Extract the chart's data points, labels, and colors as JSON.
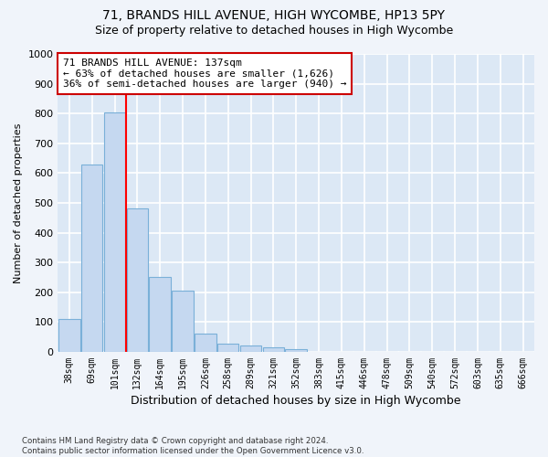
{
  "title1": "71, BRANDS HILL AVENUE, HIGH WYCOMBE, HP13 5PY",
  "title2": "Size of property relative to detached houses in High Wycombe",
  "xlabel": "Distribution of detached houses by size in High Wycombe",
  "ylabel": "Number of detached properties",
  "footnote": "Contains HM Land Registry data © Crown copyright and database right 2024.\nContains public sector information licensed under the Open Government Licence v3.0.",
  "bin_labels": [
    "38sqm",
    "69sqm",
    "101sqm",
    "132sqm",
    "164sqm",
    "195sqm",
    "226sqm",
    "258sqm",
    "289sqm",
    "321sqm",
    "352sqm",
    "383sqm",
    "415sqm",
    "446sqm",
    "478sqm",
    "509sqm",
    "540sqm",
    "572sqm",
    "603sqm",
    "635sqm",
    "666sqm"
  ],
  "bar_values": [
    110,
    630,
    805,
    480,
    250,
    205,
    62,
    27,
    20,
    14,
    10,
    0,
    0,
    0,
    0,
    0,
    0,
    0,
    0,
    0,
    0
  ],
  "bar_color": "#c5d8f0",
  "bar_edge_color": "#7ab0d8",
  "vline_x_index": 2.5,
  "vline_color": "red",
  "annotation_text": "71 BRANDS HILL AVENUE: 137sqm\n← 63% of detached houses are smaller (1,626)\n36% of semi-detached houses are larger (940) →",
  "annotation_box_color": "white",
  "annotation_box_edge_color": "#cc0000",
  "ylim": [
    0,
    1000
  ],
  "yticks": [
    0,
    100,
    200,
    300,
    400,
    500,
    600,
    700,
    800,
    900,
    1000
  ],
  "bg_color": "#f0f4fa",
  "plot_bg_color": "#dce8f5",
  "grid_color": "white",
  "title1_fontsize": 10,
  "title2_fontsize": 9
}
